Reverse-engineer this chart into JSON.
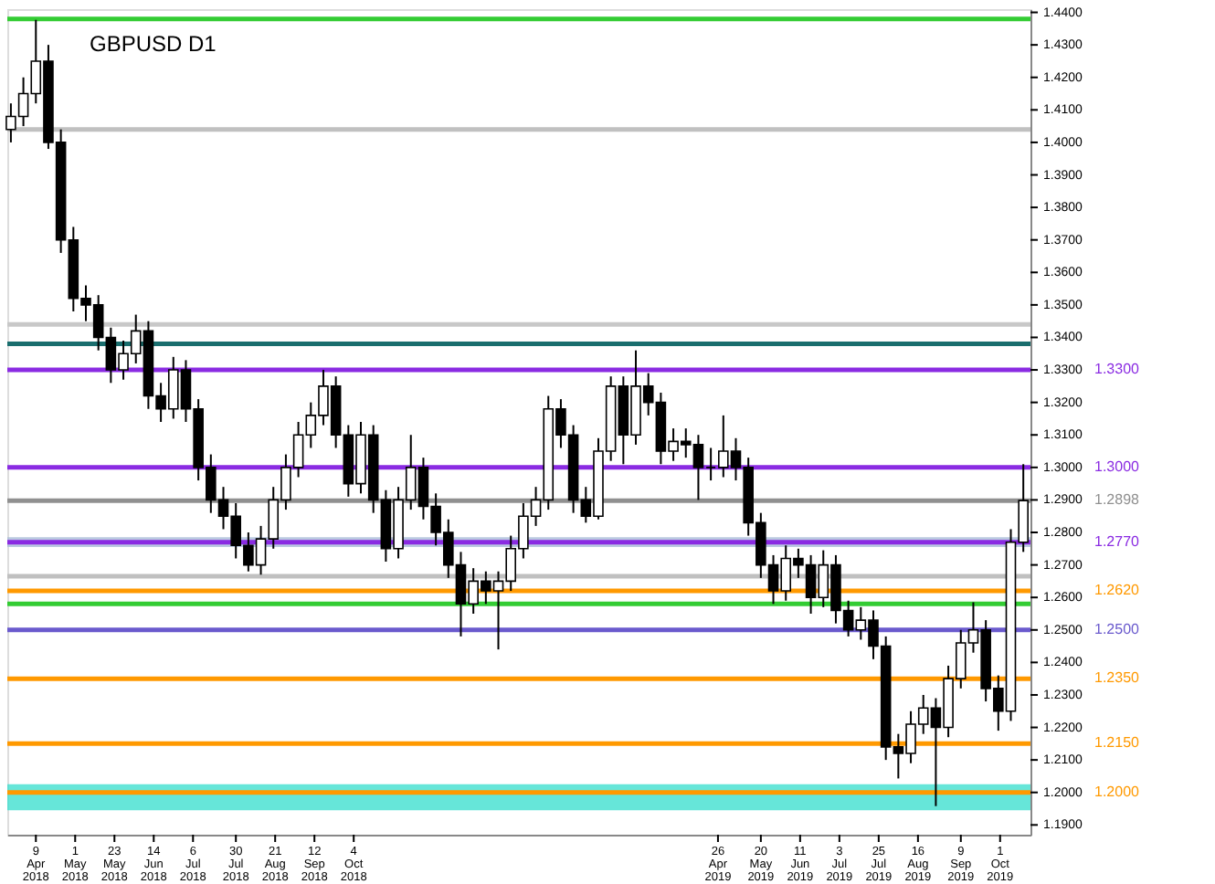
{
  "chart_data": {
    "type": "candlestick",
    "title": "GBPUSD D1",
    "x": [
      "2018-03-26",
      "2018-04-02",
      "2018-04-09",
      "2018-04-16",
      "2018-04-23",
      "2018-04-30",
      "2018-05-07",
      "2018-05-14",
      "2018-05-21",
      "2018-05-28",
      "2018-06-04",
      "2018-06-11",
      "2018-06-18",
      "2018-06-25",
      "2018-07-02",
      "2018-07-09",
      "2018-07-16",
      "2018-07-23",
      "2018-07-30",
      "2018-08-06",
      "2018-08-13",
      "2018-08-20",
      "2018-08-27",
      "2018-09-03",
      "2018-09-10",
      "2018-09-17",
      "2018-09-24",
      "2018-10-01",
      "2018-10-08",
      "2018-10-15",
      "2018-10-22",
      "2018-10-29",
      "2018-11-05",
      "2018-11-12",
      "2018-11-19",
      "2018-11-26",
      "2018-12-03",
      "2018-12-10",
      "2018-12-17",
      "2018-12-24",
      "2018-12-31",
      "2019-01-07",
      "2019-01-14",
      "2019-01-21",
      "2019-01-28",
      "2019-02-04",
      "2019-02-11",
      "2019-02-18",
      "2019-02-25",
      "2019-03-04",
      "2019-03-11",
      "2019-03-18",
      "2019-03-25",
      "2019-04-01",
      "2019-04-08",
      "2019-04-15",
      "2019-04-22",
      "2019-04-29",
      "2019-05-06",
      "2019-05-13",
      "2019-05-20",
      "2019-05-27",
      "2019-06-03",
      "2019-06-10",
      "2019-06-17",
      "2019-06-24",
      "2019-07-01",
      "2019-07-08",
      "2019-07-15",
      "2019-07-22",
      "2019-07-29",
      "2019-08-05",
      "2019-08-12",
      "2019-08-19",
      "2019-08-26",
      "2019-09-02",
      "2019-09-09",
      "2019-09-16",
      "2019-09-23",
      "2019-09-30",
      "2019-10-07",
      "2019-10-14"
    ],
    "ohlc": [
      [
        1.404,
        1.412,
        1.4,
        1.408
      ],
      [
        1.408,
        1.42,
        1.405,
        1.415
      ],
      [
        1.415,
        1.4377,
        1.412,
        1.425
      ],
      [
        1.425,
        1.43,
        1.398,
        1.4
      ],
      [
        1.4,
        1.404,
        1.366,
        1.37
      ],
      [
        1.37,
        1.374,
        1.348,
        1.352
      ],
      [
        1.352,
        1.356,
        1.345,
        1.35
      ],
      [
        1.35,
        1.353,
        1.336,
        1.34
      ],
      [
        1.34,
        1.343,
        1.326,
        1.33
      ],
      [
        1.33,
        1.339,
        1.327,
        1.335
      ],
      [
        1.335,
        1.347,
        1.332,
        1.342
      ],
      [
        1.342,
        1.345,
        1.318,
        1.322
      ],
      [
        1.322,
        1.326,
        1.314,
        1.318
      ],
      [
        1.318,
        1.334,
        1.315,
        1.33
      ],
      [
        1.33,
        1.333,
        1.314,
        1.318
      ],
      [
        1.318,
        1.321,
        1.296,
        1.3
      ],
      [
        1.3,
        1.304,
        1.286,
        1.29
      ],
      [
        1.29,
        1.294,
        1.281,
        1.285
      ],
      [
        1.285,
        1.289,
        1.272,
        1.276
      ],
      [
        1.276,
        1.28,
        1.268,
        1.27
      ],
      [
        1.27,
        1.282,
        1.267,
        1.278
      ],
      [
        1.278,
        1.294,
        1.275,
        1.29
      ],
      [
        1.29,
        1.304,
        1.287,
        1.3
      ],
      [
        1.3,
        1.314,
        1.297,
        1.31
      ],
      [
        1.31,
        1.32,
        1.306,
        1.316
      ],
      [
        1.316,
        1.33,
        1.313,
        1.325
      ],
      [
        1.325,
        1.328,
        1.306,
        1.31
      ],
      [
        1.31,
        1.313,
        1.291,
        1.295
      ],
      [
        1.295,
        1.314,
        1.292,
        1.31
      ],
      [
        1.31,
        1.313,
        1.286,
        1.29
      ],
      [
        1.29,
        1.293,
        1.271,
        1.275
      ],
      [
        1.275,
        1.294,
        1.272,
        1.29
      ],
      [
        1.29,
        1.31,
        1.287,
        1.3
      ],
      [
        1.3,
        1.303,
        1.284,
        1.288
      ],
      [
        1.288,
        1.292,
        1.276,
        1.28
      ],
      [
        1.28,
        1.284,
        1.266,
        1.27
      ],
      [
        1.27,
        1.274,
        1.248,
        1.258
      ],
      [
        1.258,
        1.269,
        1.255,
        1.265
      ],
      [
        1.265,
        1.268,
        1.258,
        1.262
      ],
      [
        1.262,
        1.268,
        1.244,
        1.265
      ],
      [
        1.265,
        1.279,
        1.262,
        1.275
      ],
      [
        1.275,
        1.289,
        1.272,
        1.285
      ],
      [
        1.285,
        1.294,
        1.282,
        1.29
      ],
      [
        1.29,
        1.322,
        1.287,
        1.318
      ],
      [
        1.318,
        1.321,
        1.306,
        1.31
      ],
      [
        1.31,
        1.313,
        1.286,
        1.29
      ],
      [
        1.29,
        1.294,
        1.283,
        1.285
      ],
      [
        1.285,
        1.309,
        1.284,
        1.305
      ],
      [
        1.305,
        1.328,
        1.302,
        1.325
      ],
      [
        1.325,
        1.328,
        1.301,
        1.31
      ],
      [
        1.31,
        1.336,
        1.307,
        1.325
      ],
      [
        1.325,
        1.329,
        1.316,
        1.32
      ],
      [
        1.32,
        1.323,
        1.301,
        1.305
      ],
      [
        1.305,
        1.312,
        1.302,
        1.308
      ],
      [
        1.308,
        1.312,
        1.303,
        1.307
      ],
      [
        1.307,
        1.31,
        1.29,
        1.3
      ],
      [
        1.3,
        1.306,
        1.296,
        1.3
      ],
      [
        1.3,
        1.316,
        1.297,
        1.305
      ],
      [
        1.305,
        1.309,
        1.296,
        1.3
      ],
      [
        1.3,
        1.303,
        1.279,
        1.283
      ],
      [
        1.283,
        1.286,
        1.266,
        1.27
      ],
      [
        1.27,
        1.273,
        1.258,
        1.262
      ],
      [
        1.262,
        1.276,
        1.259,
        1.272
      ],
      [
        1.272,
        1.275,
        1.266,
        1.27
      ],
      [
        1.27,
        1.273,
        1.255,
        1.26
      ],
      [
        1.26,
        1.2745,
        1.257,
        1.27
      ],
      [
        1.27,
        1.273,
        1.252,
        1.256
      ],
      [
        1.256,
        1.259,
        1.248,
        1.25
      ],
      [
        1.25,
        1.257,
        1.247,
        1.253
      ],
      [
        1.253,
        1.256,
        1.241,
        1.245
      ],
      [
        1.245,
        1.248,
        1.21,
        1.214
      ],
      [
        1.214,
        1.218,
        1.2043,
        1.212
      ],
      [
        1.212,
        1.225,
        1.209,
        1.221
      ],
      [
        1.221,
        1.23,
        1.218,
        1.226
      ],
      [
        1.226,
        1.229,
        1.1958,
        1.22
      ],
      [
        1.22,
        1.239,
        1.217,
        1.235
      ],
      [
        1.235,
        1.25,
        1.232,
        1.246
      ],
      [
        1.246,
        1.2585,
        1.243,
        1.25
      ],
      [
        1.25,
        1.253,
        1.228,
        1.232
      ],
      [
        1.232,
        1.236,
        1.219,
        1.225
      ],
      [
        1.225,
        1.281,
        1.222,
        1.277
      ],
      [
        1.277,
        1.301,
        1.274,
        1.2898
      ]
    ],
    "xlim": [
      "2018-03-24",
      "2019-10-18"
    ],
    "xticks": [
      {
        "value": "2018-04-09",
        "label": "9 Apr 2018"
      },
      {
        "value": "2018-05-01",
        "label": "1 May 2018"
      },
      {
        "value": "2018-05-23",
        "label": "23 May 2018"
      },
      {
        "value": "2018-06-14",
        "label": "14 Jun 2018"
      },
      {
        "value": "2018-07-06",
        "label": "6 Jul 2018"
      },
      {
        "value": "2018-07-30",
        "label": "30 Jul 2018"
      },
      {
        "value": "2018-08-21",
        "label": "21 Aug 2018"
      },
      {
        "value": "2018-09-12",
        "label": "12 Sep 2018"
      },
      {
        "value": "2018-10-04",
        "label": "4 Oct 2018"
      },
      {
        "value": "2019-04-26",
        "label": "26 Apr 2019"
      },
      {
        "value": "2019-05-20",
        "label": "20 May 2019"
      },
      {
        "value": "2019-06-11",
        "label": "11 Jun 2019"
      },
      {
        "value": "2019-07-03",
        "label": "3 Jul 2019"
      },
      {
        "value": "2019-07-25",
        "label": "25 Jul 2019"
      },
      {
        "value": "2019-08-16",
        "label": "16 Aug 2019"
      },
      {
        "value": "2019-09-09",
        "label": "9 Sep 2019"
      },
      {
        "value": "2019-10-01",
        "label": "1 Oct 2019"
      }
    ],
    "ylim": [
      1.187,
      1.441
    ],
    "yticks": [
      {
        "value": 1.19,
        "label": "1.1900"
      },
      {
        "value": 1.2,
        "label": "1.2000"
      },
      {
        "value": 1.21,
        "label": "1.2100"
      },
      {
        "value": 1.22,
        "label": "1.2200"
      },
      {
        "value": 1.23,
        "label": "1.2300"
      },
      {
        "value": 1.24,
        "label": "1.2400"
      },
      {
        "value": 1.25,
        "label": "1.2500"
      },
      {
        "value": 1.26,
        "label": "1.2600"
      },
      {
        "value": 1.27,
        "label": "1.2700"
      },
      {
        "value": 1.28,
        "label": "1.2800"
      },
      {
        "value": 1.29,
        "label": "1.2900"
      },
      {
        "value": 1.3,
        "label": "1.3000"
      },
      {
        "value": 1.31,
        "label": "1.3100"
      },
      {
        "value": 1.32,
        "label": "1.3200"
      },
      {
        "value": 1.33,
        "label": "1.3300"
      },
      {
        "value": 1.34,
        "label": "1.3400"
      },
      {
        "value": 1.35,
        "label": "1.3500"
      },
      {
        "value": 1.36,
        "label": "1.3600"
      },
      {
        "value": 1.37,
        "label": "1.3700"
      },
      {
        "value": 1.38,
        "label": "1.3800"
      },
      {
        "value": 1.39,
        "label": "1.3900"
      },
      {
        "value": 1.4,
        "label": "1.4000"
      },
      {
        "value": 1.41,
        "label": "1.4100"
      },
      {
        "value": 1.42,
        "label": "1.4200"
      },
      {
        "value": 1.43,
        "label": "1.4300"
      },
      {
        "value": 1.44,
        "label": "1.4400"
      }
    ],
    "ref_lines": [
      {
        "axis": "y",
        "value": 1.438,
        "color": "#33cc33"
      },
      {
        "axis": "y",
        "value": 1.404,
        "color": "#c0c0c0"
      },
      {
        "axis": "y",
        "value": 1.344,
        "color": "#c8c8c8"
      },
      {
        "axis": "y",
        "value": 1.338,
        "color": "#1a6e6e"
      },
      {
        "axis": "y",
        "value": 1.33,
        "label": "1.3300",
        "color": "#8a2be2"
      },
      {
        "axis": "y",
        "value": 1.3,
        "label": "1.3000",
        "color": "#8a2be2"
      },
      {
        "axis": "y",
        "value": 1.2898,
        "label": "1.2898",
        "color": "#909090"
      },
      {
        "axis": "y",
        "value": 1.277,
        "label": "1.2770",
        "color": "#8a2be2"
      },
      {
        "axis": "y",
        "value": 1.2665,
        "color": "#c0c0c0"
      },
      {
        "axis": "y",
        "value": 1.262,
        "label": "1.2620",
        "color": "#ff9900"
      },
      {
        "axis": "y",
        "value": 1.258,
        "color": "#33cc33"
      },
      {
        "axis": "y",
        "value": 1.25,
        "label": "1.2500",
        "color": "#6a5acd"
      },
      {
        "axis": "y",
        "value": 1.235,
        "label": "1.2350",
        "color": "#ff9900"
      },
      {
        "axis": "y",
        "value": 1.215,
        "label": "1.2150",
        "color": "#ff9900"
      },
      {
        "axis": "y",
        "value": 1.2,
        "label": "1.2000",
        "color": "#ff9900"
      }
    ],
    "bands": [
      {
        "axis": "y",
        "from": 1.2755,
        "to": 1.2785,
        "color": "#a9bcd8"
      },
      {
        "axis": "y",
        "from": 1.1945,
        "to": 1.2025,
        "color": "#40e0d0"
      }
    ],
    "grid": false
  }
}
